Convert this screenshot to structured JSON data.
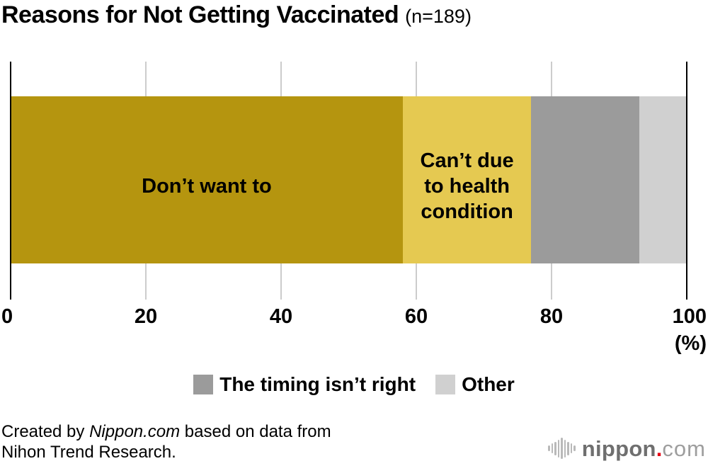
{
  "header": {
    "title": "Reasons for Not Getting Vaccinated",
    "subtitle": "(n=189)",
    "sample_size": 189
  },
  "chart_data": {
    "type": "bar",
    "orientation": "horizontal",
    "stacked": true,
    "title": "Reasons for Not Getting Vaccinated",
    "subtitle": "(n=189)",
    "xlim": [
      0,
      100
    ],
    "x_unit_label": "(%)",
    "gridlines": true,
    "grid_ticks": [
      20,
      40,
      60,
      80
    ],
    "x_ticks": [
      {
        "label": "0",
        "value": 0
      },
      {
        "label": "20",
        "value": 20
      },
      {
        "label": "40",
        "value": 40
      },
      {
        "label": "60",
        "value": 60
      },
      {
        "label": "80",
        "value": 80
      },
      {
        "label": "100",
        "value": 100
      }
    ],
    "segments": [
      {
        "label": "Don’t want to",
        "value": 58,
        "color": "#B5950F",
        "label_inside": true,
        "in_legend": false
      },
      {
        "label": "Can’t due to health condition",
        "value": 19,
        "color": "#E5C951",
        "label_inside": true,
        "in_legend": false
      },
      {
        "label": "The timing isn’t right",
        "value": 16,
        "color": "#9B9B9B",
        "label_inside": false,
        "in_legend": true
      },
      {
        "label": "Other",
        "value": 7,
        "color": "#D0D0D0",
        "label_inside": false,
        "in_legend": true
      }
    ],
    "legend_position": "bottom-center",
    "colors": {
      "axis": "#000000",
      "gridline": "#CCCCCC",
      "bar_label_text": "#000000"
    }
  },
  "footer": {
    "credit_prefix": "Created by ",
    "credit_source_italic": "Nippon.com",
    "credit_suffix": " based on data from",
    "credit_line2": "Nihon Trend Research.",
    "logo": {
      "name": "nippon",
      "dot": ".",
      "tld": "com",
      "brand_red": "#E60012",
      "name_color": "#6F6F6F",
      "tld_color": "#9E9E9E"
    }
  }
}
